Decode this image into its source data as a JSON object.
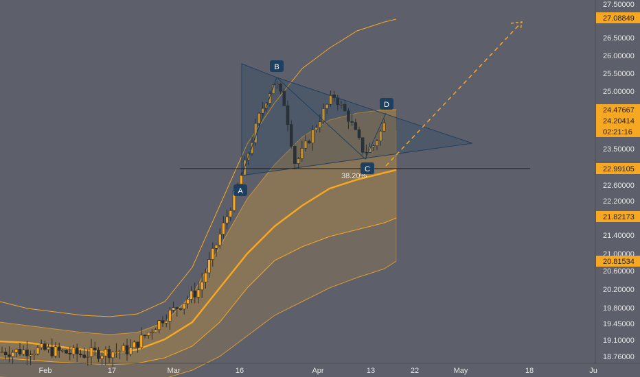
{
  "chart_data": {
    "type": "candlestick",
    "colors": {
      "background": "#5d606b",
      "candle_up": "#f7a823",
      "candle_down": "#2b2b2b",
      "band": "#f7a823",
      "pattern": "#1f3f5f",
      "label_bg": "#1f3f5f",
      "price_tag": "#f7a823"
    },
    "x_ticks": [
      "Feb",
      "17",
      "Mar",
      "16",
      "Apr",
      "13",
      "22",
      "May",
      "18",
      "Ju"
    ],
    "y_ticks": [
      "27.50000",
      "26.50000",
      "26.00000",
      "25.50000",
      "25.00000",
      "23.50000",
      "22.60000",
      "22.20000",
      "21.40000",
      "21.00000",
      "20.60000",
      "20.20000",
      "19.80000",
      "19.45000",
      "19.10000",
      "18.76000"
    ],
    "price_tags": [
      {
        "label": "27.08849",
        "value": 27.08849
      },
      {
        "label": "24.47667",
        "value": 24.47667
      },
      {
        "label": "24.20414",
        "value": 24.20414
      },
      {
        "label": "02:21:16",
        "value": 23.93
      },
      {
        "label": "22.99105",
        "value": 22.99105
      },
      {
        "label": "21.82173",
        "value": 21.82173
      },
      {
        "label": "20.81534",
        "value": 20.81534
      }
    ],
    "pattern_points": [
      {
        "label": "A",
        "value": 22.95
      },
      {
        "label": "B",
        "value": 25.42
      },
      {
        "label": "C",
        "value": 23.2
      },
      {
        "label": "D",
        "value": 24.5
      }
    ],
    "fib_label": "38.20%",
    "fib_level": 22.99105
  }
}
